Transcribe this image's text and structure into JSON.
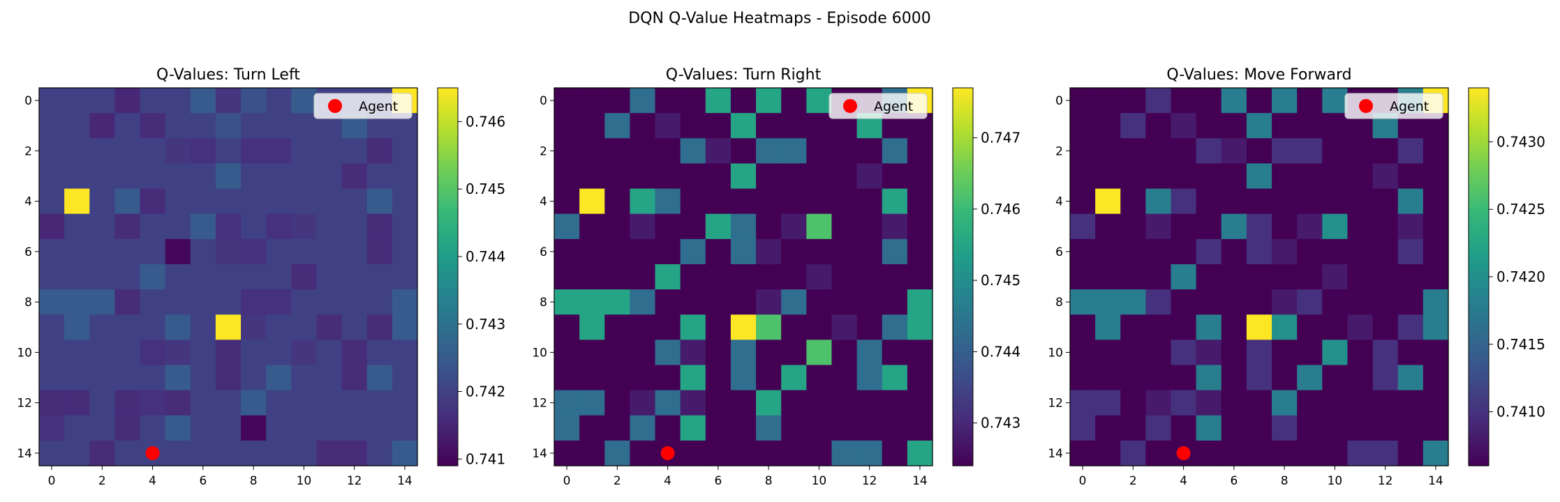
{
  "suptitle": "DQN Q-Value Heatmaps - Episode 6000",
  "colormap": "viridis",
  "marker_color": "#ff0000",
  "chart_data": [
    {
      "type": "heatmap",
      "title": "Q-Values: Turn Left",
      "xlabel": "",
      "ylabel": "",
      "x_ticks": [
        "0",
        "2",
        "4",
        "6",
        "8",
        "10",
        "12",
        "14"
      ],
      "y_ticks": [
        "0",
        "2",
        "4",
        "6",
        "8",
        "10",
        "12",
        "14"
      ],
      "grid": false,
      "vmin": 0.7409,
      "vmax": 0.7465,
      "colorbar_ticks": [
        "0.741",
        "0.742",
        "0.743",
        "0.744",
        "0.745",
        "0.746"
      ],
      "colorbar_tick_values": [
        0.741,
        0.742,
        0.743,
        0.744,
        0.745,
        0.746
      ],
      "legend": {
        "label": "Agent",
        "placement": "upper-right"
      },
      "agent": {
        "x": 4,
        "y": 14
      },
      "values": [
        [
          0.742,
          0.742,
          0.742,
          0.7415,
          0.742,
          0.742,
          0.7425,
          0.7418,
          0.7423,
          0.742,
          0.7425,
          0.742,
          0.742,
          0.742,
          0.7465
        ],
        [
          0.742,
          0.742,
          0.7415,
          0.742,
          0.7416,
          0.742,
          0.742,
          0.7423,
          0.742,
          0.742,
          0.742,
          0.742,
          0.7425,
          0.742,
          0.742
        ],
        [
          0.742,
          0.742,
          0.742,
          0.742,
          0.742,
          0.7418,
          0.7417,
          0.742,
          0.7417,
          0.7417,
          0.742,
          0.742,
          0.742,
          0.7416,
          0.742
        ],
        [
          0.742,
          0.742,
          0.742,
          0.742,
          0.742,
          0.742,
          0.742,
          0.7425,
          0.742,
          0.742,
          0.742,
          0.742,
          0.7416,
          0.742,
          0.742
        ],
        [
          0.742,
          0.7465,
          0.742,
          0.7425,
          0.7416,
          0.742,
          0.742,
          0.742,
          0.742,
          0.742,
          0.742,
          0.742,
          0.742,
          0.7425,
          0.742
        ],
        [
          0.7415,
          0.742,
          0.742,
          0.7416,
          0.742,
          0.742,
          0.7425,
          0.7417,
          0.742,
          0.7417,
          0.7418,
          0.742,
          0.742,
          0.7416,
          0.742
        ],
        [
          0.742,
          0.742,
          0.742,
          0.742,
          0.742,
          0.741,
          0.742,
          0.7418,
          0.7417,
          0.742,
          0.742,
          0.742,
          0.742,
          0.7416,
          0.742
        ],
        [
          0.742,
          0.742,
          0.742,
          0.742,
          0.7425,
          0.742,
          0.742,
          0.742,
          0.742,
          0.742,
          0.7416,
          0.742,
          0.742,
          0.742,
          0.742
        ],
        [
          0.7425,
          0.7425,
          0.7425,
          0.7416,
          0.742,
          0.742,
          0.742,
          0.742,
          0.7417,
          0.7417,
          0.742,
          0.742,
          0.742,
          0.742,
          0.7425
        ],
        [
          0.742,
          0.7425,
          0.742,
          0.742,
          0.742,
          0.7425,
          0.742,
          0.7465,
          0.7418,
          0.742,
          0.742,
          0.7416,
          0.742,
          0.7416,
          0.7425
        ],
        [
          0.742,
          0.742,
          0.742,
          0.742,
          0.7417,
          0.7418,
          0.742,
          0.7416,
          0.742,
          0.742,
          0.7418,
          0.742,
          0.7416,
          0.742,
          0.742
        ],
        [
          0.742,
          0.742,
          0.742,
          0.742,
          0.742,
          0.7425,
          0.742,
          0.7416,
          0.742,
          0.7425,
          0.742,
          0.742,
          0.7416,
          0.7425,
          0.742
        ],
        [
          0.7416,
          0.7416,
          0.742,
          0.7416,
          0.7417,
          0.7416,
          0.742,
          0.742,
          0.7425,
          0.742,
          0.742,
          0.742,
          0.742,
          0.742,
          0.742
        ],
        [
          0.7417,
          0.742,
          0.742,
          0.7416,
          0.742,
          0.7425,
          0.742,
          0.742,
          0.741,
          0.742,
          0.742,
          0.742,
          0.742,
          0.742,
          0.742
        ],
        [
          0.742,
          0.742,
          0.7416,
          0.742,
          0.742,
          0.742,
          0.742,
          0.742,
          0.742,
          0.742,
          0.742,
          0.7416,
          0.7416,
          0.742,
          0.7425
        ]
      ]
    },
    {
      "type": "heatmap",
      "title": "Q-Values: Turn Right",
      "xlabel": "",
      "ylabel": "",
      "x_ticks": [
        "0",
        "2",
        "4",
        "6",
        "8",
        "10",
        "12",
        "14"
      ],
      "y_ticks": [
        "0",
        "2",
        "4",
        "6",
        "8",
        "10",
        "12",
        "14"
      ],
      "grid": false,
      "vmin": 0.7424,
      "vmax": 0.7477,
      "colorbar_ticks": [
        "0.743",
        "0.744",
        "0.745",
        "0.746",
        "0.747"
      ],
      "colorbar_tick_values": [
        0.743,
        0.744,
        0.745,
        0.746,
        0.747
      ],
      "legend": {
        "label": "Agent",
        "placement": "upper-right"
      },
      "agent": {
        "x": 4,
        "y": 14
      },
      "values": [
        [
          0.7424,
          0.7424,
          0.7424,
          0.7443,
          0.7424,
          0.7424,
          0.7455,
          0.7424,
          0.7455,
          0.7424,
          0.7455,
          0.7424,
          0.7424,
          0.7443,
          0.7477
        ],
        [
          0.7424,
          0.7424,
          0.7443,
          0.7424,
          0.7428,
          0.7424,
          0.7424,
          0.7455,
          0.7424,
          0.7424,
          0.7424,
          0.7424,
          0.7455,
          0.7424,
          0.7424
        ],
        [
          0.7424,
          0.7424,
          0.7424,
          0.7424,
          0.7424,
          0.7443,
          0.7428,
          0.7424,
          0.7443,
          0.7443,
          0.7424,
          0.7424,
          0.7424,
          0.7443,
          0.7424
        ],
        [
          0.7424,
          0.7424,
          0.7424,
          0.7424,
          0.7424,
          0.7424,
          0.7424,
          0.7455,
          0.7424,
          0.7424,
          0.7424,
          0.7424,
          0.7428,
          0.7424,
          0.7424
        ],
        [
          0.7424,
          0.7477,
          0.7424,
          0.7455,
          0.7443,
          0.7424,
          0.7424,
          0.7424,
          0.7424,
          0.7424,
          0.7424,
          0.7424,
          0.7424,
          0.7455,
          0.7424
        ],
        [
          0.7443,
          0.7424,
          0.7424,
          0.7428,
          0.7424,
          0.7424,
          0.7455,
          0.7443,
          0.7424,
          0.7428,
          0.7462,
          0.7424,
          0.7424,
          0.7428,
          0.7424
        ],
        [
          0.7424,
          0.7424,
          0.7424,
          0.7424,
          0.7424,
          0.7443,
          0.7424,
          0.7443,
          0.7428,
          0.7424,
          0.7424,
          0.7424,
          0.7424,
          0.7443,
          0.7424
        ],
        [
          0.7424,
          0.7424,
          0.7424,
          0.7424,
          0.7455,
          0.7424,
          0.7424,
          0.7424,
          0.7424,
          0.7424,
          0.7428,
          0.7424,
          0.7424,
          0.7424,
          0.7424
        ],
        [
          0.7455,
          0.7455,
          0.7455,
          0.7443,
          0.7424,
          0.7424,
          0.7424,
          0.7424,
          0.7428,
          0.7443,
          0.7424,
          0.7424,
          0.7424,
          0.7424,
          0.7455
        ],
        [
          0.7424,
          0.7455,
          0.7424,
          0.7424,
          0.7424,
          0.7455,
          0.7424,
          0.7477,
          0.7462,
          0.7424,
          0.7424,
          0.7428,
          0.7424,
          0.7443,
          0.7455
        ],
        [
          0.7424,
          0.7424,
          0.7424,
          0.7424,
          0.7443,
          0.7428,
          0.7424,
          0.7443,
          0.7424,
          0.7424,
          0.7462,
          0.7424,
          0.7443,
          0.7424,
          0.7424
        ],
        [
          0.7424,
          0.7424,
          0.7424,
          0.7424,
          0.7424,
          0.7455,
          0.7424,
          0.7443,
          0.7424,
          0.7455,
          0.7424,
          0.7424,
          0.7443,
          0.7455,
          0.7424
        ],
        [
          0.7443,
          0.7443,
          0.7424,
          0.7428,
          0.7443,
          0.7428,
          0.7424,
          0.7424,
          0.7455,
          0.7424,
          0.7424,
          0.7424,
          0.7424,
          0.7424,
          0.7424
        ],
        [
          0.7443,
          0.7424,
          0.7424,
          0.7443,
          0.7424,
          0.7455,
          0.7424,
          0.7424,
          0.7443,
          0.7424,
          0.7424,
          0.7424,
          0.7424,
          0.7424,
          0.7424
        ],
        [
          0.7424,
          0.7424,
          0.7443,
          0.7424,
          0.7424,
          0.7424,
          0.7424,
          0.7424,
          0.7424,
          0.7424,
          0.7424,
          0.7443,
          0.7443,
          0.7424,
          0.7455
        ]
      ]
    },
    {
      "type": "heatmap",
      "title": "Q-Values: Move Forward",
      "xlabel": "",
      "ylabel": "",
      "x_ticks": [
        "0",
        "2",
        "4",
        "6",
        "8",
        "10",
        "12",
        "14"
      ],
      "y_ticks": [
        "0",
        "2",
        "4",
        "6",
        "8",
        "10",
        "12",
        "14"
      ],
      "grid": false,
      "vmin": 0.7406,
      "vmax": 0.7434,
      "colorbar_ticks": [
        "0.7410",
        "0.7415",
        "0.7420",
        "0.7425",
        "0.7430"
      ],
      "colorbar_tick_values": [
        0.741,
        0.7415,
        0.742,
        0.7425,
        0.743
      ],
      "legend": {
        "label": "Agent",
        "placement": "upper-right"
      },
      "agent": {
        "x": 4,
        "y": 14
      },
      "values": [
        [
          0.7406,
          0.7406,
          0.7406,
          0.741,
          0.7406,
          0.7406,
          0.7418,
          0.7406,
          0.7418,
          0.7406,
          0.7418,
          0.7406,
          0.7406,
          0.7418,
          0.7434
        ],
        [
          0.7406,
          0.7406,
          0.741,
          0.7406,
          0.7408,
          0.7406,
          0.7406,
          0.7418,
          0.7406,
          0.7406,
          0.7406,
          0.7406,
          0.7418,
          0.7406,
          0.7406
        ],
        [
          0.7406,
          0.7406,
          0.7406,
          0.7406,
          0.7406,
          0.741,
          0.7408,
          0.7406,
          0.741,
          0.741,
          0.7406,
          0.7406,
          0.7406,
          0.741,
          0.7406
        ],
        [
          0.7406,
          0.7406,
          0.7406,
          0.7406,
          0.7406,
          0.7406,
          0.7406,
          0.7418,
          0.7406,
          0.7406,
          0.7406,
          0.7406,
          0.7408,
          0.7406,
          0.7406
        ],
        [
          0.7406,
          0.7434,
          0.7406,
          0.7418,
          0.741,
          0.7406,
          0.7406,
          0.7406,
          0.7406,
          0.7406,
          0.7406,
          0.7406,
          0.7406,
          0.7418,
          0.7406
        ],
        [
          0.741,
          0.7406,
          0.7406,
          0.7408,
          0.7406,
          0.7406,
          0.7418,
          0.741,
          0.7406,
          0.7408,
          0.742,
          0.7406,
          0.7406,
          0.7408,
          0.7406
        ],
        [
          0.7406,
          0.7406,
          0.7406,
          0.7406,
          0.7406,
          0.741,
          0.7406,
          0.741,
          0.7408,
          0.7406,
          0.7406,
          0.7406,
          0.7406,
          0.741,
          0.7406
        ],
        [
          0.7406,
          0.7406,
          0.7406,
          0.7406,
          0.7418,
          0.7406,
          0.7406,
          0.7406,
          0.7406,
          0.7406,
          0.7408,
          0.7406,
          0.7406,
          0.7406,
          0.7406
        ],
        [
          0.7418,
          0.7418,
          0.7418,
          0.741,
          0.7406,
          0.7406,
          0.7406,
          0.7406,
          0.7408,
          0.741,
          0.7406,
          0.7406,
          0.7406,
          0.7406,
          0.7418
        ],
        [
          0.7406,
          0.7418,
          0.7406,
          0.7406,
          0.7406,
          0.7418,
          0.7406,
          0.7434,
          0.742,
          0.7406,
          0.7406,
          0.7408,
          0.7406,
          0.741,
          0.7418
        ],
        [
          0.7406,
          0.7406,
          0.7406,
          0.7406,
          0.741,
          0.7408,
          0.7406,
          0.741,
          0.7406,
          0.7406,
          0.742,
          0.7406,
          0.741,
          0.7406,
          0.7406
        ],
        [
          0.7406,
          0.7406,
          0.7406,
          0.7406,
          0.7406,
          0.7418,
          0.7406,
          0.741,
          0.7406,
          0.7418,
          0.7406,
          0.7406,
          0.741,
          0.7418,
          0.7406
        ],
        [
          0.741,
          0.741,
          0.7406,
          0.7408,
          0.741,
          0.7408,
          0.7406,
          0.7406,
          0.7418,
          0.7406,
          0.7406,
          0.7406,
          0.7406,
          0.7406,
          0.7406
        ],
        [
          0.741,
          0.7406,
          0.7406,
          0.741,
          0.7406,
          0.7418,
          0.7406,
          0.7406,
          0.741,
          0.7406,
          0.7406,
          0.7406,
          0.7406,
          0.7406,
          0.7406
        ],
        [
          0.7406,
          0.7406,
          0.741,
          0.7406,
          0.7406,
          0.7406,
          0.7406,
          0.7406,
          0.7406,
          0.7406,
          0.7406,
          0.741,
          0.741,
          0.7406,
          0.7418
        ]
      ]
    }
  ]
}
